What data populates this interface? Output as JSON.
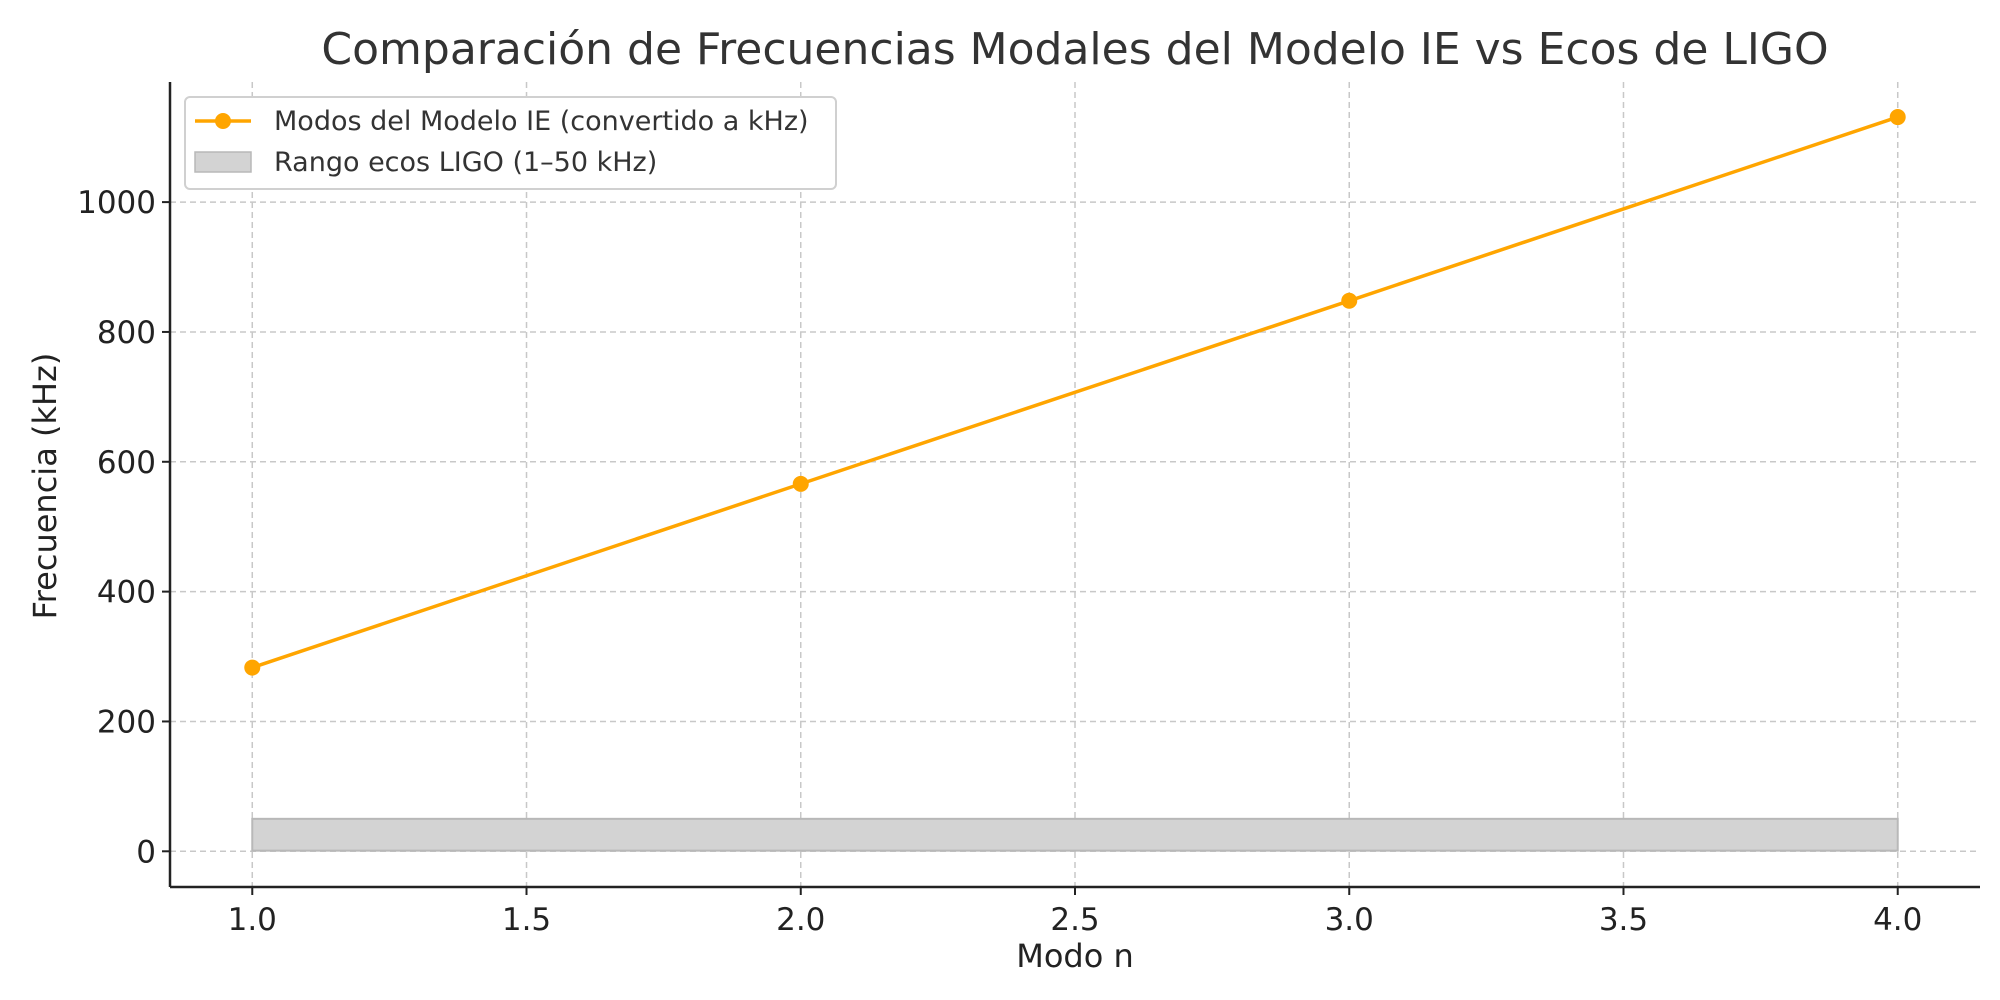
{
  "chart_data": {
    "type": "line",
    "title": "Comparación de Frecuencias Modales del Modelo IE vs Ecos de LIGO",
    "xlabel": "Modo n",
    "ylabel": "Frecuencia (kHz)",
    "xlim": [
      0.85,
      4.15
    ],
    "ylim": [
      -55,
      1185
    ],
    "xticks": [
      1.0,
      1.5,
      2.0,
      2.5,
      3.0,
      3.5,
      4.0
    ],
    "xtick_labels": [
      "1.0",
      "1.5",
      "2.0",
      "2.5",
      "3.0",
      "3.5",
      "4.0"
    ],
    "yticks": [
      0,
      200,
      400,
      600,
      800,
      1000
    ],
    "ytick_labels": [
      "0",
      "200",
      "400",
      "600",
      "800",
      "1000"
    ],
    "grid": true,
    "legend_position": "top-left",
    "series": [
      {
        "name": "Modos del Modelo IE (convertido a kHz)",
        "kind": "line-marker",
        "color": "#FFA500",
        "x": [
          1,
          2,
          3,
          4
        ],
        "y": [
          283,
          566,
          848,
          1131
        ]
      }
    ],
    "bands": [
      {
        "name": "Rango ecos LIGO (1–50 kHz)",
        "kind": "band",
        "color": "#d3d3d3",
        "edge_color": "#b8b8b8",
        "x": [
          1,
          4
        ],
        "y": [
          1,
          50
        ]
      }
    ]
  }
}
